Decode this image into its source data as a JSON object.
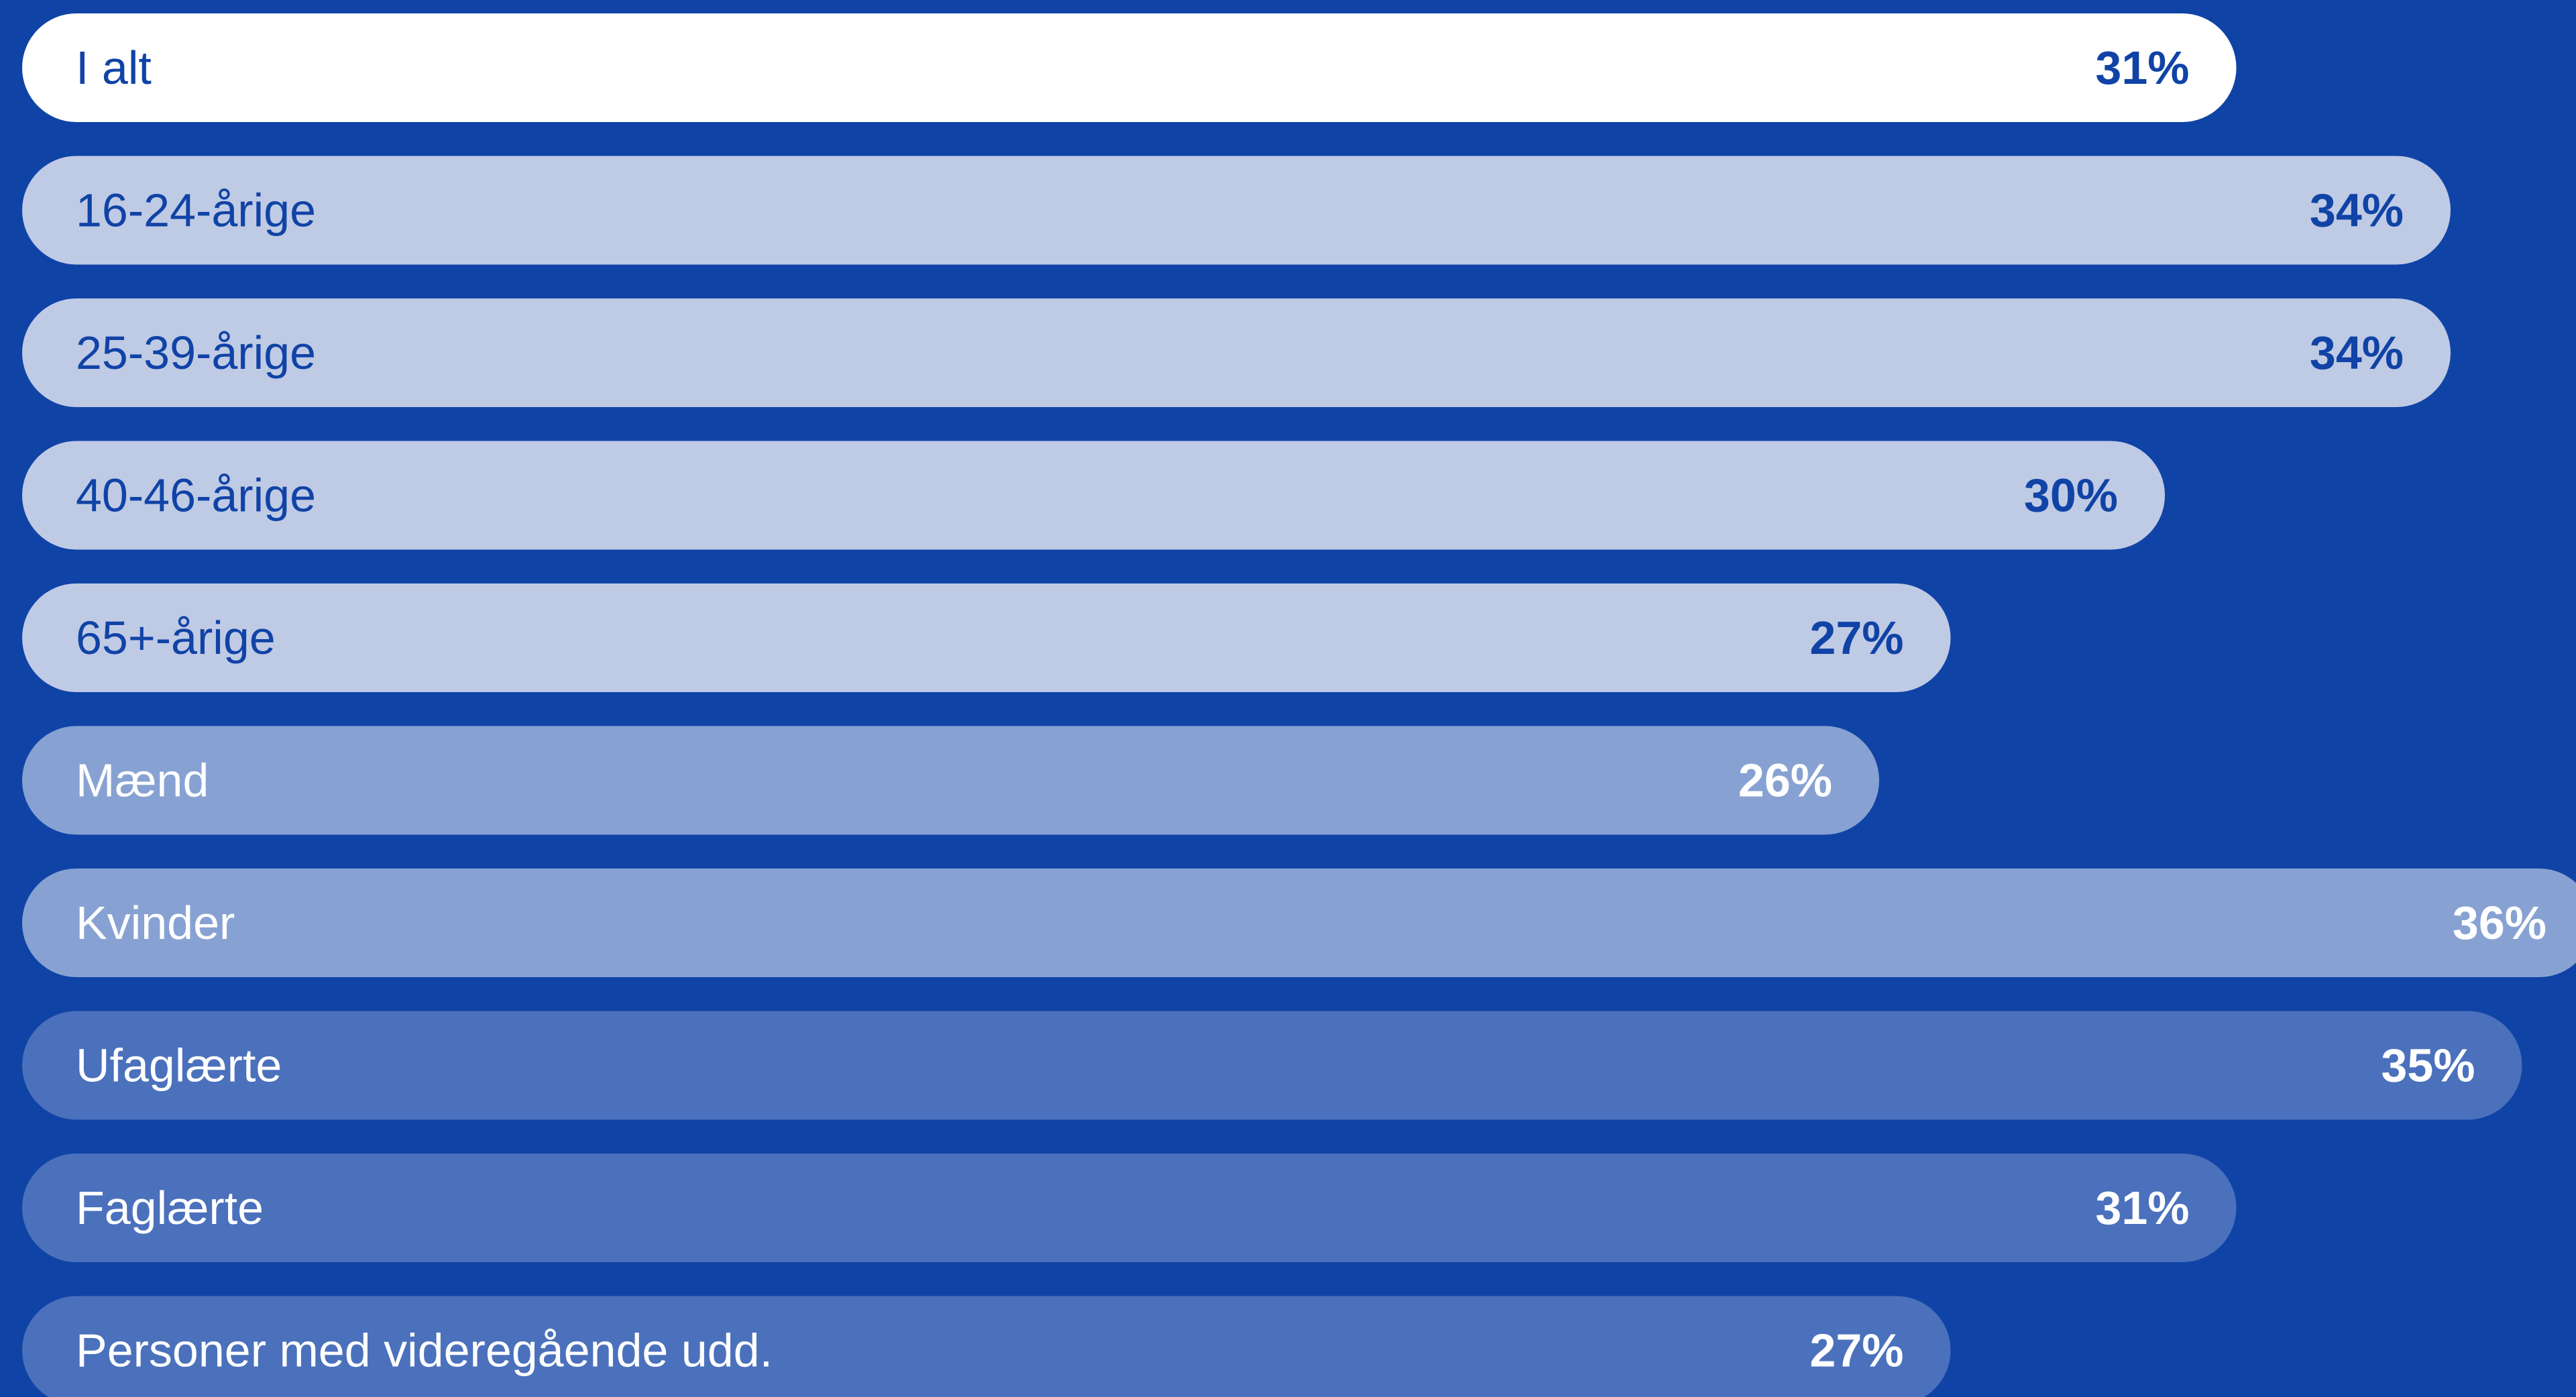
{
  "chart_data": {
    "type": "bar",
    "orientation": "horizontal",
    "categories": [
      "I alt",
      "16-24-årige",
      "25-39-årige",
      "40-46-årige",
      "65+-årige",
      "Mænd",
      "Kvinder",
      "Ufaglærte",
      "Faglærte",
      "Personer med videregående udd."
    ],
    "values": [
      31,
      34,
      34,
      30,
      27,
      26,
      36,
      35,
      31,
      27
    ],
    "value_labels": [
      "31%",
      "34%",
      "34%",
      "30%",
      "27%",
      "26%",
      "36%",
      "35%",
      "31%",
      "27%"
    ],
    "groups": [
      "total",
      "age",
      "age",
      "age",
      "age",
      "gender",
      "gender",
      "education",
      "education",
      "education"
    ],
    "unit": "%",
    "title": "",
    "xlabel": "",
    "ylabel": "",
    "grid": false,
    "legend": "none"
  },
  "colors": {
    "background": "#1043a6",
    "total_bar": "#ffffff",
    "age_bar": "#bfcae5",
    "gender_bar": "#87a2d2",
    "education_bar": "#4b71bc",
    "dark_text": "#1043a6",
    "light_text": "#ffffff"
  }
}
